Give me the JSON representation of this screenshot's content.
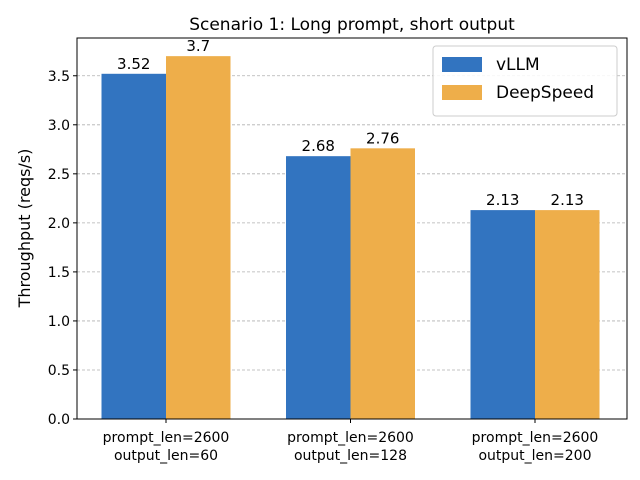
{
  "chart_data": {
    "type": "bar",
    "title": "Scenario 1: Long prompt, short output",
    "y_label": "Throughput (reqs/s)",
    "categories": [
      "prompt_len=2600\noutput_len=60",
      "prompt_len=2600\noutput_len=128",
      "prompt_len=2600\noutput_len=200"
    ],
    "series": [
      {
        "name": "vLLM",
        "color": "#3274c0",
        "values": [
          3.52,
          2.68,
          2.13
        ]
      },
      {
        "name": "DeepSpeed",
        "color": "#eeae4a",
        "values": [
          3.7,
          2.76,
          2.13
        ]
      }
    ],
    "ylim": [
      0,
      3.885
    ],
    "yticks": [
      {
        "value": 0,
        "label": "0.0"
      },
      0.5,
      {
        "value": 1,
        "label": "1.0"
      },
      1.5,
      {
        "value": 2,
        "label": "2.0"
      },
      2.5,
      {
        "value": 3,
        "label": "3.0"
      },
      3.5
    ],
    "grid": true,
    "legend": "upper right"
  }
}
